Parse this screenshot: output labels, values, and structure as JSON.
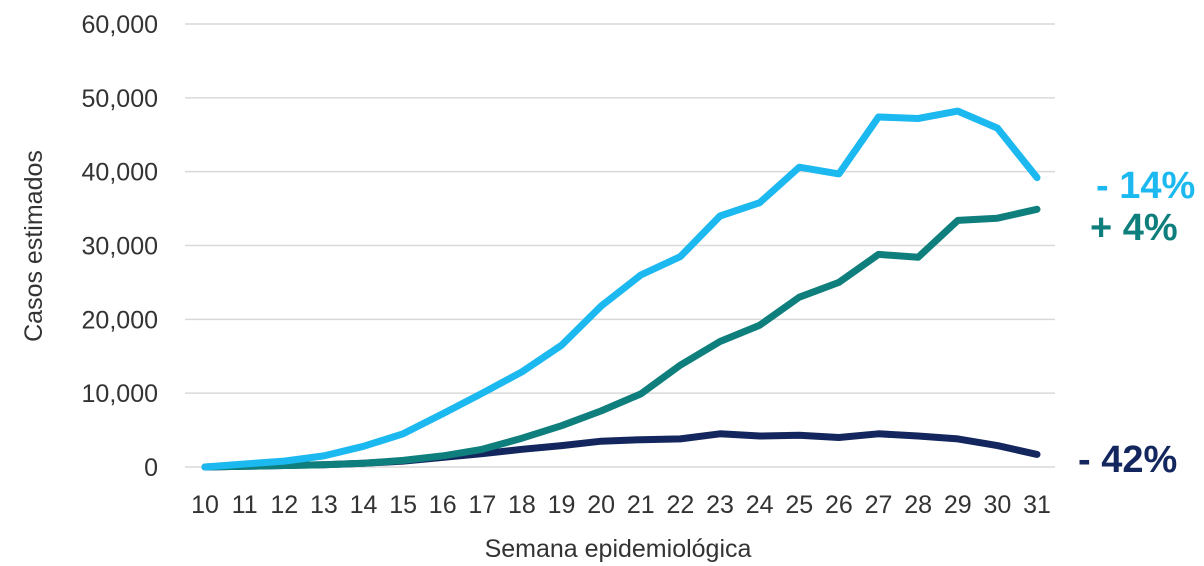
{
  "chart_data": {
    "type": "line",
    "title": "",
    "xlabel": "Semana epidemiológica",
    "ylabel": "Casos estimados",
    "ylim": [
      0,
      60000
    ],
    "y_ticks": [
      "0",
      "10,000",
      "20,000",
      "30,000",
      "40,000",
      "50,000",
      "60,000"
    ],
    "y_tick_values": [
      0,
      10000,
      20000,
      30000,
      40000,
      50000,
      60000
    ],
    "x": [
      10,
      11,
      12,
      13,
      14,
      15,
      16,
      17,
      18,
      19,
      20,
      21,
      22,
      23,
      24,
      25,
      26,
      27,
      28,
      29,
      30,
      31
    ],
    "x_ticks": [
      "10",
      "11",
      "12",
      "13",
      "14",
      "15",
      "16",
      "17",
      "18",
      "19",
      "20",
      "21",
      "22",
      "23",
      "24",
      "25",
      "26",
      "27",
      "28",
      "29",
      "30",
      "31"
    ],
    "grid": "horizontal",
    "series": [
      {
        "label": "- 14%",
        "color": "#1cb8f0",
        "values": [
          0,
          400,
          800,
          1500,
          2800,
          4500,
          7200,
          10000,
          12900,
          16500,
          21800,
          26000,
          28500,
          34000,
          35800,
          40600,
          39700,
          47400,
          47200,
          48200,
          45900,
          39200
        ]
      },
      {
        "label": "+ 4%",
        "color": "#0e7f7c",
        "values": [
          0,
          100,
          200,
          300,
          500,
          900,
          1500,
          2400,
          3900,
          5600,
          7600,
          9900,
          13800,
          17000,
          19200,
          23000,
          25000,
          28800,
          28400,
          33400,
          33700,
          34900
        ]
      },
      {
        "label": "- 42%",
        "color": "#13275e",
        "values": [
          0,
          100,
          200,
          300,
          500,
          800,
          1300,
          1800,
          2400,
          2900,
          3500,
          3700,
          3800,
          4500,
          4200,
          4300,
          4000,
          4500,
          4200,
          3800,
          2900,
          1700
        ]
      }
    ]
  }
}
